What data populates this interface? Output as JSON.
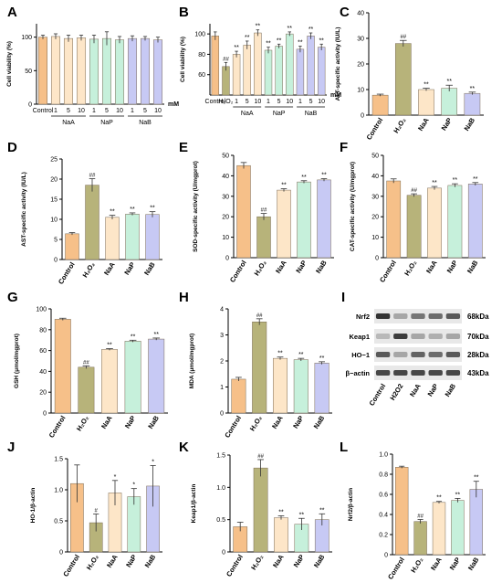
{
  "colors": {
    "Control": "#f6c089",
    "H2O2": "#b7b37a",
    "NaA": "#fde6c8",
    "NaP": "#c6f0db",
    "NaB": "#c7c9f4",
    "axis": "#000000",
    "error": "#333333",
    "blot_bg": "#e8e8e8",
    "band": "#2a2a2a"
  },
  "icons": {
    "blot": "western-blot-bands"
  },
  "chart_data": [
    {
      "panel": "A",
      "type": "bar",
      "ylabel": "Cell viability (%)",
      "ylim": [
        0,
        120
      ],
      "yticks": [
        0,
        50,
        100
      ],
      "categories": [
        "Control",
        "1",
        "5",
        "10",
        "1",
        "5",
        "10",
        "1",
        "5",
        "10"
      ],
      "groups": [
        {
          "label": "NaA",
          "from": 1,
          "to": 3
        },
        {
          "label": "NaP",
          "from": 4,
          "to": 6
        },
        {
          "label": "NaB",
          "from": 7,
          "to": 9
        }
      ],
      "unit": "mM",
      "values": [
        100,
        101,
        98,
        99,
        97,
        98,
        96,
        98,
        98,
        96
      ],
      "errors": [
        3,
        4,
        5,
        4,
        6,
        10,
        5,
        4,
        3,
        4
      ],
      "annotations": [
        "",
        "",
        "",
        "",
        "",
        "",
        "",
        "",
        "",
        ""
      ],
      "color_keys": [
        "Control",
        "NaA",
        "NaA",
        "NaA",
        "NaP",
        "NaP",
        "NaP",
        "NaB",
        "NaB",
        "NaB"
      ]
    },
    {
      "panel": "B",
      "type": "bar",
      "ylabel": "Cell viability (%)",
      "ylim": [
        40,
        110
      ],
      "yticks": [
        60,
        80,
        100
      ],
      "categories": [
        "Control",
        "H₂O₂",
        "1",
        "5",
        "10",
        "1",
        "5",
        "10",
        "1",
        "5",
        "10"
      ],
      "groups": [
        {
          "label": "NaA",
          "from": 2,
          "to": 4
        },
        {
          "label": "NaP",
          "from": 5,
          "to": 7
        },
        {
          "label": "NaB",
          "from": 8,
          "to": 10
        }
      ],
      "unit": "mM",
      "values": [
        98,
        68,
        80,
        89,
        101,
        84,
        88,
        100,
        85,
        98,
        87
      ],
      "errors": [
        4,
        4,
        3,
        4,
        3,
        3,
        2,
        2,
        3,
        3,
        3
      ],
      "annotations": [
        "",
        "##",
        "**",
        "**",
        "**",
        "**",
        "**",
        "**",
        "**",
        "**",
        "**"
      ],
      "color_keys": [
        "Control",
        "H2O2",
        "NaA",
        "NaA",
        "NaA",
        "NaP",
        "NaP",
        "NaP",
        "NaB",
        "NaB",
        "NaB"
      ]
    },
    {
      "panel": "C",
      "type": "bar",
      "ylabel": "ALT-specific activity (IU/L)",
      "ylim": [
        0,
        40
      ],
      "yticks": [
        0,
        10,
        20,
        30,
        40
      ],
      "categories": [
        "Control",
        "H₂O₂",
        "NaA",
        "NaP",
        "NaB"
      ],
      "values": [
        7.8,
        28,
        10,
        10.5,
        8.5
      ],
      "errors": [
        0.4,
        1.2,
        0.5,
        1.2,
        0.5
      ],
      "annotations": [
        "",
        "##",
        "**",
        "**",
        "**"
      ],
      "color_keys": [
        "Control",
        "H2O2",
        "NaA",
        "NaP",
        "NaB"
      ]
    },
    {
      "panel": "D",
      "type": "bar",
      "ylabel": "AST-specific activity (IU/L)",
      "ylim": [
        0,
        25
      ],
      "yticks": [
        0,
        5,
        10,
        15,
        20,
        25
      ],
      "categories": [
        "Control",
        "H₂O₂",
        "NaA",
        "NaP",
        "NaB"
      ],
      "values": [
        6.4,
        18.5,
        10.5,
        11.3,
        11.2
      ],
      "errors": [
        0.3,
        1.6,
        0.5,
        0.3,
        0.7
      ],
      "annotations": [
        "",
        "##",
        "**",
        "**",
        "**"
      ],
      "color_keys": [
        "Control",
        "H2O2",
        "NaA",
        "NaP",
        "NaB"
      ]
    },
    {
      "panel": "E",
      "type": "bar",
      "ylabel": "SOD-specific activity (U/mgprot)",
      "ylim": [
        0,
        50
      ],
      "yticks": [
        0,
        10,
        20,
        30,
        40,
        50
      ],
      "categories": [
        "Control",
        "H₂O₂",
        "NaA",
        "NaP",
        "NaB"
      ],
      "values": [
        45,
        20,
        33,
        37,
        38
      ],
      "errors": [
        1.5,
        1.6,
        0.7,
        0.6,
        0.6
      ],
      "annotations": [
        "",
        "##",
        "**",
        "**",
        "**"
      ],
      "color_keys": [
        "Control",
        "H2O2",
        "NaA",
        "NaP",
        "NaB"
      ]
    },
    {
      "panel": "F",
      "type": "bar",
      "ylabel": "CAT-specific activity (U/mgprot)",
      "ylim": [
        0,
        50
      ],
      "yticks": [
        0,
        10,
        20,
        30,
        40,
        50
      ],
      "categories": [
        "Control",
        "H₂O₂",
        "NaA",
        "NaP",
        "NaB"
      ],
      "values": [
        37.5,
        30.5,
        34,
        35.3,
        36
      ],
      "errors": [
        1,
        0.7,
        0.8,
        0.8,
        0.7
      ],
      "annotations": [
        "",
        "##",
        "**",
        "**",
        "**"
      ],
      "color_keys": [
        "Control",
        "H2O2",
        "NaA",
        "NaP",
        "NaB"
      ]
    },
    {
      "panel": "G",
      "type": "bar",
      "ylabel": "GSH (μmol/mgprot)",
      "ylim": [
        0,
        100
      ],
      "yticks": [
        0,
        20,
        40,
        60,
        80,
        100
      ],
      "categories": [
        "Control",
        "H₂O₂",
        "NaA",
        "NaP",
        "NaB"
      ],
      "values": [
        90,
        44,
        61,
        69,
        71
      ],
      "errors": [
        1,
        1.3,
        0.8,
        0.9,
        1
      ],
      "annotations": [
        "",
        "##",
        "**",
        "**",
        "**"
      ],
      "color_keys": [
        "Control",
        "H2O2",
        "NaA",
        "NaP",
        "NaB"
      ]
    },
    {
      "panel": "H",
      "type": "bar",
      "ylabel": "MDA (μmol/mgprot)",
      "ylim": [
        0,
        4
      ],
      "yticks": [
        0,
        1,
        2,
        3,
        4
      ],
      "categories": [
        "Control",
        "H₂O₂",
        "NaA",
        "NaP",
        "NaB"
      ],
      "values": [
        1.3,
        3.5,
        2.1,
        2.05,
        1.92
      ],
      "errors": [
        0.07,
        0.12,
        0.05,
        0.05,
        0.05
      ],
      "annotations": [
        "",
        "##",
        "**",
        "**",
        "**"
      ],
      "color_keys": [
        "Control",
        "H2O2",
        "NaA",
        "NaP",
        "NaB"
      ]
    },
    {
      "panel": "J",
      "type": "bar",
      "ylabel": "HO-1/β-actin",
      "ylim": [
        0,
        1.5
      ],
      "yticks": [
        0,
        0.5,
        1.0,
        1.5
      ],
      "categories": [
        "Control",
        "H₂O₂",
        "NaA",
        "NaP",
        "NaB"
      ],
      "values": [
        1.1,
        0.47,
        0.95,
        0.89,
        1.06
      ],
      "errors": [
        0.3,
        0.14,
        0.2,
        0.13,
        0.33
      ],
      "annotations": [
        "",
        "#",
        "*",
        "*",
        "*"
      ],
      "color_keys": [
        "Control",
        "H2O2",
        "NaA",
        "NaP",
        "NaB"
      ]
    },
    {
      "panel": "K",
      "type": "bar",
      "ylabel": "Keap1/β-actin",
      "ylim": [
        0,
        1.5
      ],
      "yticks": [
        0,
        0.5,
        1.0,
        1.5
      ],
      "categories": [
        "Control",
        "H₂O₂",
        "NaA",
        "NaP",
        "NaB"
      ],
      "values": [
        0.39,
        1.3,
        0.53,
        0.43,
        0.5
      ],
      "errors": [
        0.07,
        0.13,
        0.03,
        0.09,
        0.09
      ],
      "annotations": [
        "",
        "##",
        "**",
        "**",
        "**"
      ],
      "color_keys": [
        "Control",
        "H2O2",
        "NaA",
        "NaP",
        "NaB"
      ]
    },
    {
      "panel": "L",
      "type": "bar",
      "ylabel": "Nrf2/β-actin",
      "ylim": [
        0,
        1.0
      ],
      "yticks": [
        0,
        0.2,
        0.4,
        0.6,
        0.8,
        1.0
      ],
      "categories": [
        "Control",
        "H₂O₂",
        "NaA",
        "NaP",
        "NaB"
      ],
      "values": [
        0.87,
        0.33,
        0.52,
        0.54,
        0.65
      ],
      "errors": [
        0.01,
        0.02,
        0.01,
        0.02,
        0.08
      ],
      "annotations": [
        "",
        "##",
        "**",
        "**",
        "**"
      ],
      "color_keys": [
        "Control",
        "H2O2",
        "NaA",
        "NaP",
        "NaB"
      ]
    }
  ],
  "blot": {
    "panel": "I",
    "proteins": [
      "Nrf2",
      "Keap1",
      "HO−1",
      "β−actin"
    ],
    "kda": [
      "68kDa",
      "70kDa",
      "28kDa",
      "43kDa"
    ],
    "lanes": [
      "Control",
      "H2O2",
      "NaA",
      "NaP",
      "NaB"
    ],
    "intensity": [
      [
        0.95,
        0.35,
        0.6,
        0.65,
        0.75
      ],
      [
        0.25,
        0.9,
        0.35,
        0.3,
        0.35
      ],
      [
        0.75,
        0.35,
        0.7,
        0.65,
        0.75
      ],
      [
        0.85,
        0.85,
        0.85,
        0.85,
        0.85
      ]
    ]
  }
}
